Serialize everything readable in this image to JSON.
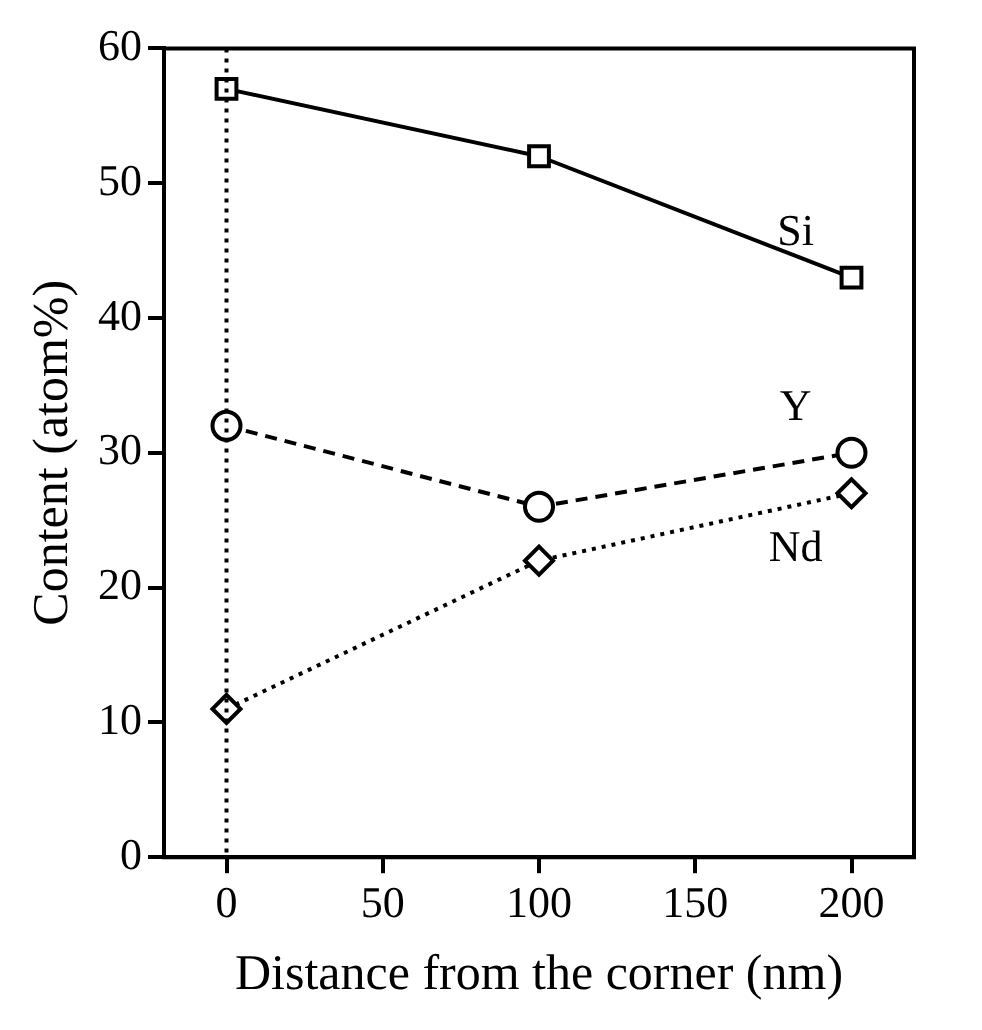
{
  "chart_data": {
    "type": "line",
    "xlabel": "Distance from the corner (nm)",
    "ylabel": "Content (atom%)",
    "x": [
      0,
      100,
      200
    ],
    "series": [
      {
        "name": "Si",
        "color": "#000000",
        "values": [
          57,
          52,
          43
        ],
        "marker": "square",
        "line_style": "solid"
      },
      {
        "name": "Y",
        "color": "#000000",
        "values": [
          32,
          26,
          30
        ],
        "marker": "circle",
        "line_style": "dashed"
      },
      {
        "name": "Nd",
        "color": "#000000",
        "values": [
          11,
          22,
          27
        ],
        "marker": "diamond",
        "line_style": "dotted"
      }
    ],
    "xlim": [
      -20,
      220
    ],
    "xticks": [
      0,
      50,
      100,
      150,
      200
    ],
    "ylim": [
      0,
      60
    ],
    "yticks": [
      0,
      10,
      20,
      30,
      40,
      50,
      60
    ],
    "ref_lines": [
      {
        "axis": "x",
        "value": 0,
        "color": "#000000",
        "line_style": "dotted"
      }
    ],
    "grid": false,
    "legend": false
  }
}
